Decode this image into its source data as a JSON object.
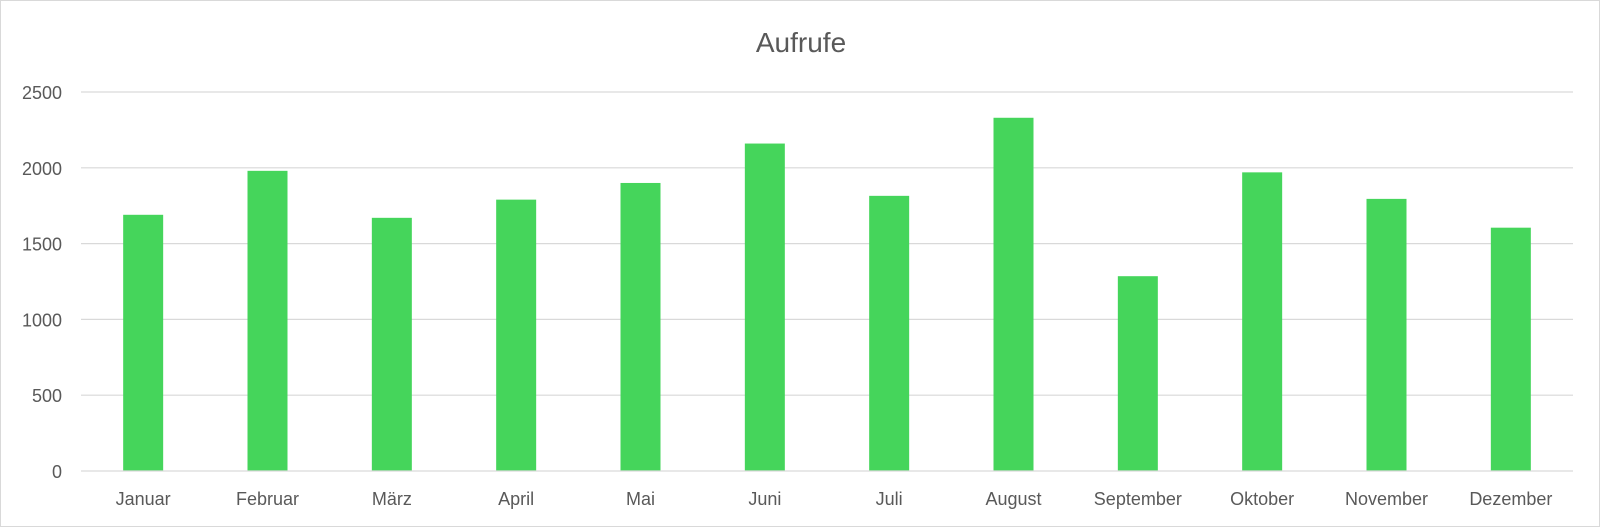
{
  "chart_data": {
    "type": "bar",
    "title": "Aufrufe",
    "xlabel": "",
    "ylabel": "",
    "categories": [
      "Januar",
      "Februar",
      "März",
      "April",
      "Mai",
      "Juni",
      "Juli",
      "August",
      "September",
      "Oktober",
      "November",
      "Dezember"
    ],
    "values": [
      1690,
      1980,
      1670,
      1790,
      1900,
      2160,
      1815,
      2330,
      1285,
      1970,
      1795,
      1605
    ],
    "ylim": [
      0,
      2500
    ],
    "yticks": [
      0,
      500,
      1000,
      1500,
      2000,
      2500
    ],
    "ytick_labels": [
      "0",
      "500",
      "1000",
      "1500",
      "2000",
      "2500"
    ],
    "grid": true,
    "legend": "none",
    "colors": {
      "bar": "#45d55b",
      "grid": "#d9d9d9",
      "text": "#595959"
    }
  }
}
